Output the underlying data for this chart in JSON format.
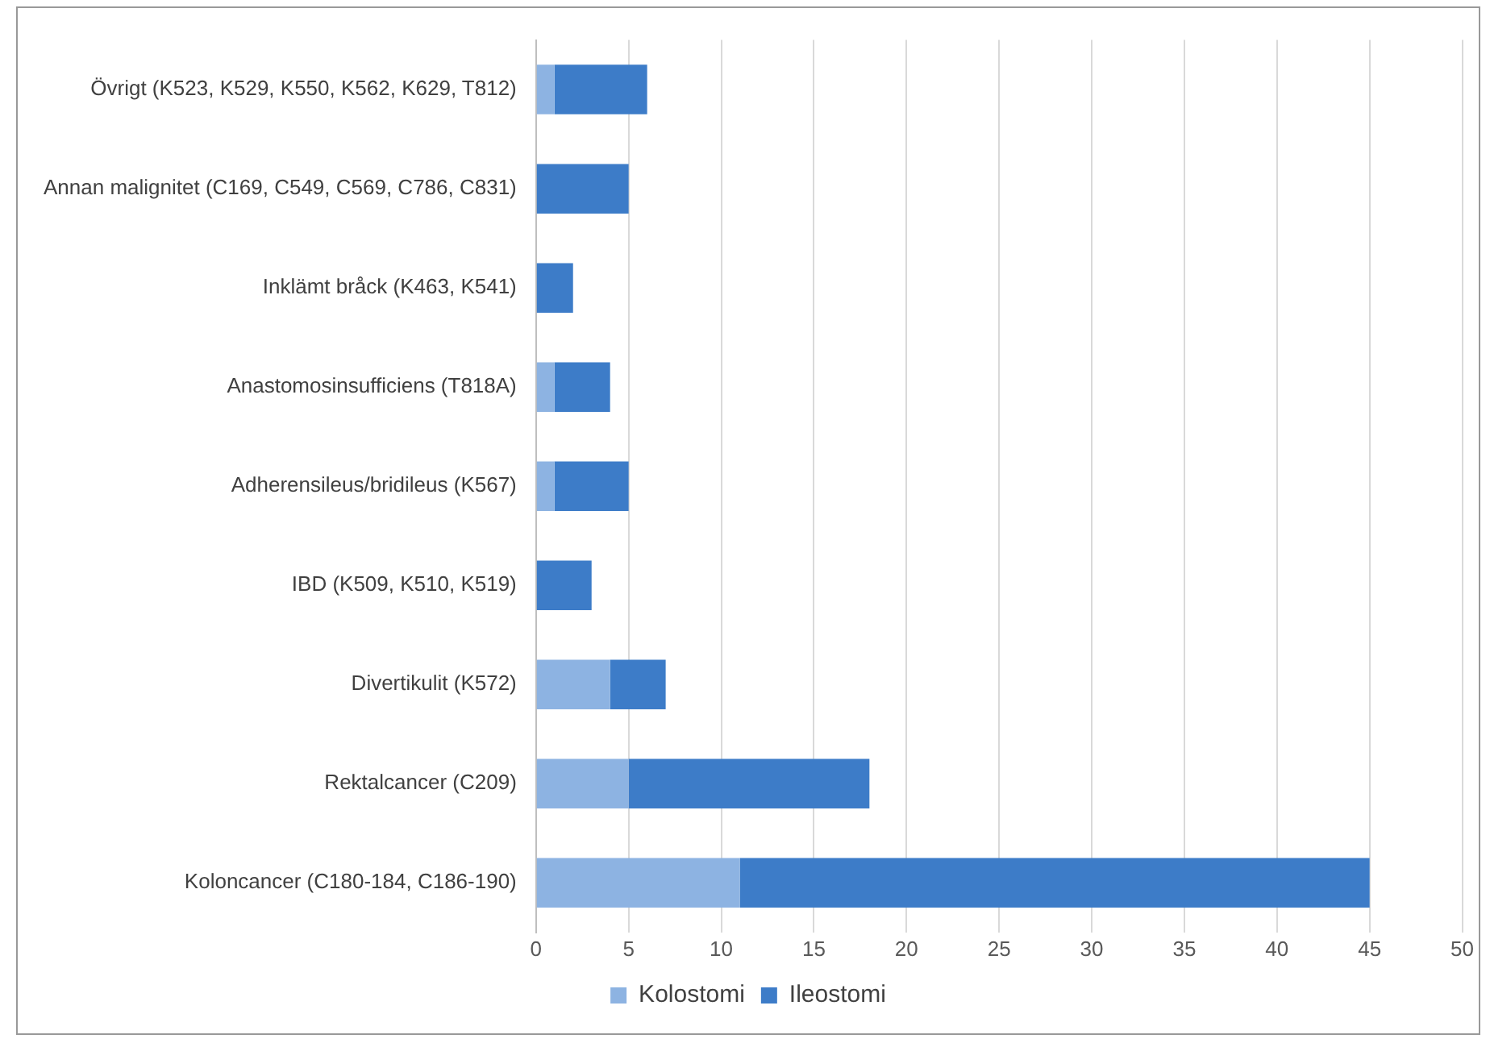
{
  "chart_data": {
    "type": "bar",
    "orientation": "horizontal",
    "stacked": true,
    "categories": [
      "Övrigt (K523, K529, K550, K562, K629, T812)",
      "Annan malignitet (C169, C549, C569, C786, C831)",
      "Inklämt bråck (K463, K541)",
      "Anastomosinsufficiens (T818A)",
      "Adherensileus/bridileus (K567)",
      "IBD (K509, K510, K519)",
      "Divertikulit (K572)",
      "Rektalcancer (C209)",
      "Koloncancer (C180-184, C186-190)"
    ],
    "series": [
      {
        "name": "Kolostomi",
        "color": "#8db3e2",
        "values": [
          1,
          0,
          0,
          1,
          1,
          0,
          4,
          5,
          11
        ]
      },
      {
        "name": "Ileostomi",
        "color": "#3d7cc8",
        "values": [
          5,
          5,
          2,
          3,
          4,
          3,
          3,
          13,
          34
        ]
      }
    ],
    "xlim": [
      0,
      50
    ],
    "xticks": [
      0,
      5,
      10,
      15,
      20,
      25,
      30,
      35,
      40,
      45,
      50
    ],
    "grid": "x",
    "legend": "bottom"
  }
}
